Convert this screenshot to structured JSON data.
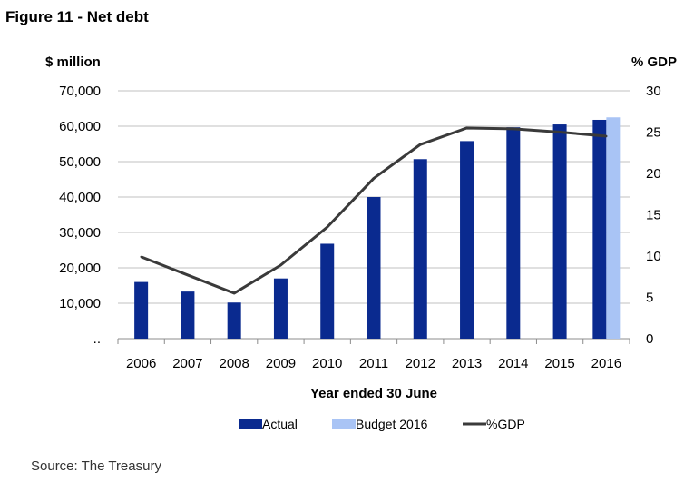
{
  "figure_title": "Figure 11 - Net debt",
  "source": "Source:  The Treasury",
  "colors": {
    "actual": "#0a2a8f",
    "budget": "#a9c4f5",
    "gdp": "#3a3a3a",
    "grid": "#c0c0c0"
  },
  "chart_data": {
    "type": "bar",
    "categories": [
      "2006",
      "2007",
      "2008",
      "2009",
      "2010",
      "2011",
      "2012",
      "2013",
      "2014",
      "2015",
      "2016"
    ],
    "series": [
      {
        "name": "Actual",
        "type": "bar",
        "axis": "left",
        "values": [
          16000,
          13300,
          10200,
          17000,
          26800,
          40000,
          50700,
          55800,
          59700,
          60500,
          61800
        ]
      },
      {
        "name": "Budget 2016",
        "type": "bar",
        "axis": "left",
        "values": [
          null,
          null,
          null,
          null,
          null,
          null,
          null,
          null,
          null,
          null,
          62500
        ]
      },
      {
        "name": "%GDP",
        "type": "line",
        "axis": "right",
        "values": [
          9.9,
          7.7,
          5.5,
          8.9,
          13.5,
          19.4,
          23.5,
          25.5,
          25.4,
          25.0,
          24.5
        ]
      }
    ],
    "ylabel": "$ million",
    "y2label": "% GDP",
    "xlabel": "Year ended 30 June",
    "ylim": [
      0,
      70000
    ],
    "y2lim": [
      0,
      30
    ],
    "yticks": [
      "..",
      "10,000",
      "20,000",
      "30,000",
      "40,000",
      "50,000",
      "60,000",
      "70,000"
    ],
    "y2ticks": [
      "0",
      "5",
      "10",
      "15",
      "20",
      "25",
      "30"
    ],
    "grid": true,
    "legend_position": "bottom"
  }
}
